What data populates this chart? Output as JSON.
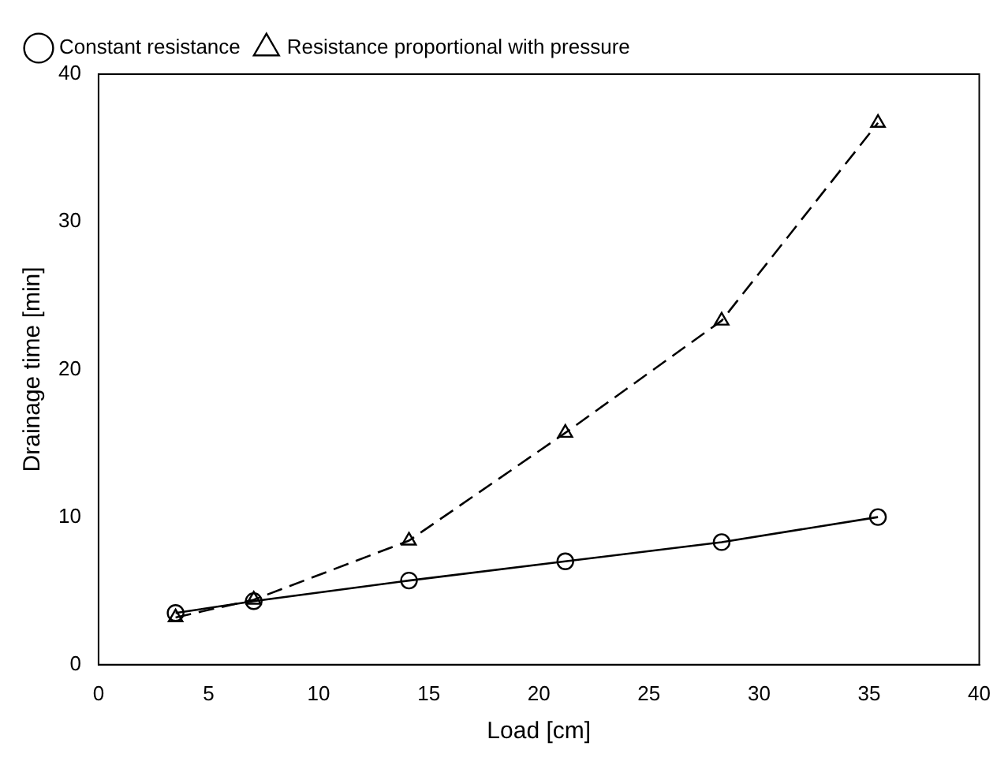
{
  "chart_data": {
    "type": "line",
    "xlabel": "Load [cm]",
    "ylabel": "Drainage time [min]",
    "xlim": [
      0,
      40
    ],
    "xticks": [
      0,
      5,
      10,
      15,
      20,
      25,
      30,
      35,
      40
    ],
    "ylim": [
      0,
      40
    ],
    "yticks": [
      0,
      10,
      20,
      30,
      40
    ],
    "grid": false,
    "legend": "top left",
    "series": [
      {
        "name": "Constant resistance",
        "color": "#000000",
        "marker": "circle",
        "line_style": "solid",
        "x": [
          3.5,
          7.05,
          14.1,
          21.2,
          28.3,
          35.4
        ],
        "values": [
          3.5,
          4.3,
          5.7,
          7.0,
          8.3,
          10.0
        ]
      },
      {
        "name": "Resistance proportional with pressure",
        "color": "#000000",
        "marker": "triangle",
        "line_style": "dashed",
        "x": [
          3.5,
          7.05,
          14.1,
          21.2,
          28.3,
          35.4
        ],
        "values": [
          3.2,
          4.4,
          8.4,
          15.7,
          23.3,
          36.7
        ]
      }
    ]
  }
}
